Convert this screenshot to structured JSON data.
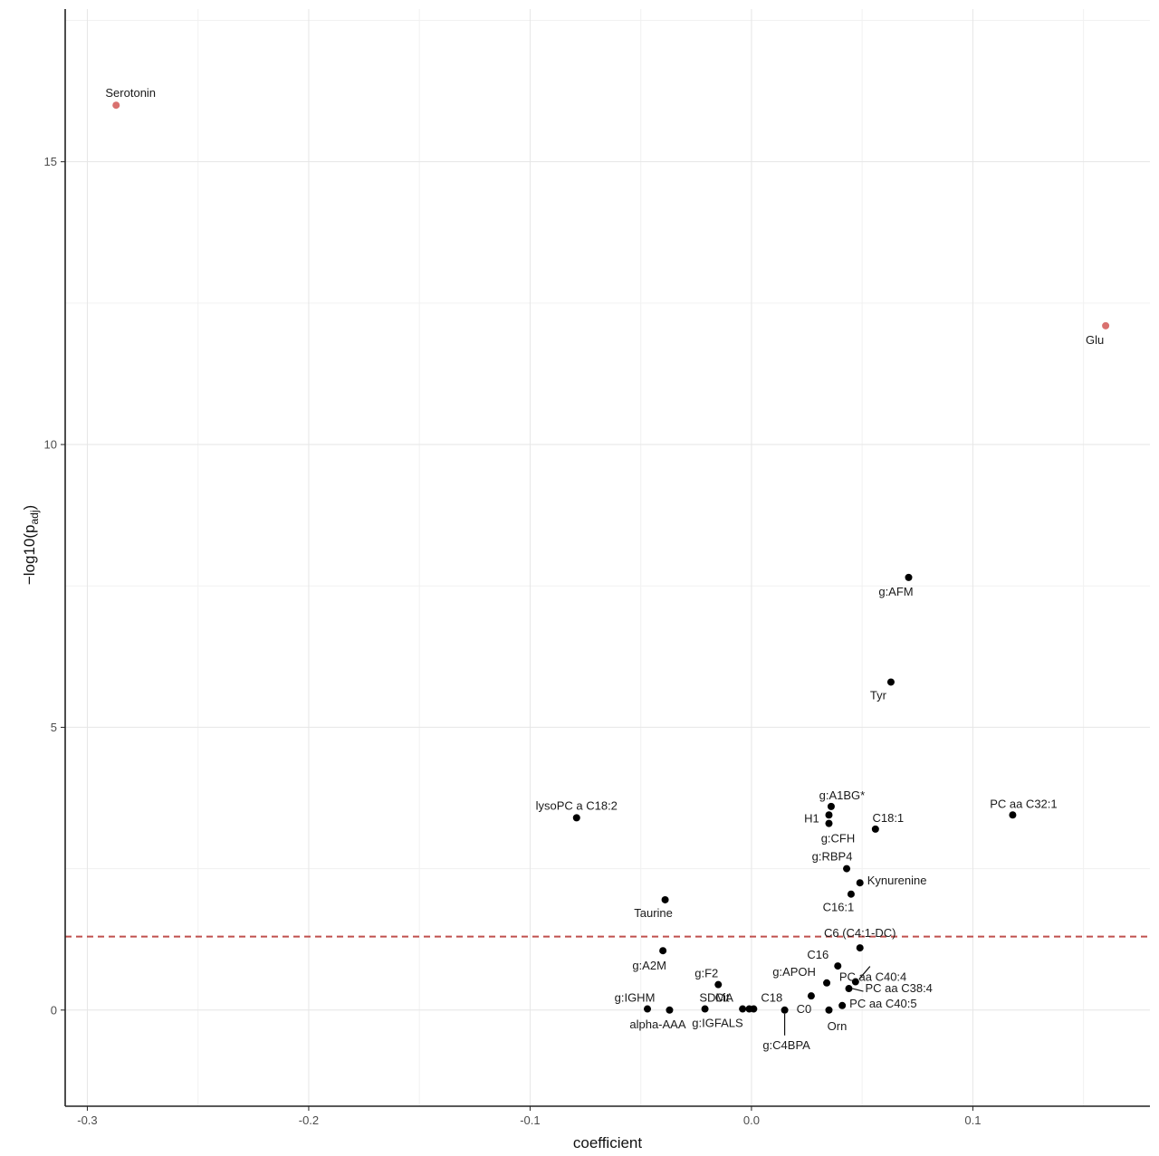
{
  "chart_data": {
    "type": "scatter",
    "title": "",
    "xlabel": "coefficient",
    "ylabel_main": "−log10(p",
    "ylabel_sub": "adj",
    "ylabel_end": ")",
    "xlim": [
      -0.31,
      0.18
    ],
    "ylim": [
      -1.7,
      17.7
    ],
    "x_ticks": [
      -0.3,
      -0.2,
      -0.1,
      0.0,
      0.1
    ],
    "x_tick_labels": [
      "-0.3",
      "-0.2",
      "-0.1",
      "0.0",
      "0.1"
    ],
    "y_ticks": [
      0,
      5,
      10,
      15
    ],
    "y_tick_labels": [
      "0",
      "5",
      "10",
      "15"
    ],
    "grid": true,
    "threshold": {
      "y": 1.3,
      "color": "#c0504d",
      "style": "dashed"
    },
    "colors": {
      "significant_highlight": "#d9716f",
      "default": "#000000"
    },
    "points": [
      {
        "label": "Serotonin",
        "x": -0.287,
        "y": 16.0,
        "highlight": true
      },
      {
        "label": "Glu",
        "x": 0.16,
        "y": 12.1,
        "highlight": true
      },
      {
        "label": "g:AFM",
        "x": 0.071,
        "y": 7.65
      },
      {
        "label": "Tyr",
        "x": 0.063,
        "y": 5.8
      },
      {
        "label": "g:A1BG*",
        "x": 0.036,
        "y": 3.6
      },
      {
        "label": "H1",
        "x": 0.035,
        "y": 3.45
      },
      {
        "label": "g:CFH",
        "x": 0.035,
        "y": 3.3
      },
      {
        "label": "C18:1",
        "x": 0.056,
        "y": 3.2
      },
      {
        "label": "lysoPC a C18:2",
        "x": -0.079,
        "y": 3.4
      },
      {
        "label": "PC aa C32:1",
        "x": 0.118,
        "y": 3.45
      },
      {
        "label": "g:RBP4",
        "x": 0.043,
        "y": 2.5
      },
      {
        "label": "Kynurenine",
        "x": 0.049,
        "y": 2.25
      },
      {
        "label": "C16:1",
        "x": 0.045,
        "y": 2.05
      },
      {
        "label": "Taurine",
        "x": -0.039,
        "y": 1.95
      },
      {
        "label": "C6 (C4:1-DC)",
        "x": 0.049,
        "y": 1.1
      },
      {
        "label": "g:A2M",
        "x": -0.04,
        "y": 1.05
      },
      {
        "label": "C16",
        "x": 0.039,
        "y": 0.78
      },
      {
        "label": "PC aa C40:4",
        "x": 0.047,
        "y": 0.5
      },
      {
        "label": "PC aa C38:4",
        "x": 0.044,
        "y": 0.38
      },
      {
        "label": "g:APOH",
        "x": 0.034,
        "y": 0.48
      },
      {
        "label": "g:F2",
        "x": -0.015,
        "y": 0.45
      },
      {
        "label": "C0",
        "x": 0.027,
        "y": 0.25
      },
      {
        "label": "PC aa C40:5",
        "x": 0.041,
        "y": 0.08
      },
      {
        "label": "g:IGHM",
        "x": -0.047,
        "y": 0.02
      },
      {
        "label": "alpha-AAA",
        "x": -0.037,
        "y": 0.0
      },
      {
        "label": "Cit",
        "x": -0.021,
        "y": 0.02
      },
      {
        "label": "SDMA",
        "x": -0.004,
        "y": 0.02
      },
      {
        "label": "g:IGFALS",
        "x": -0.001,
        "y": 0.02
      },
      {
        "label": "C18",
        "x": 0.001,
        "y": 0.02
      },
      {
        "label": "g:C4BPA",
        "x": 0.015,
        "y": 0.0
      },
      {
        "label": "Orn",
        "x": 0.035,
        "y": 0.0
      }
    ]
  }
}
